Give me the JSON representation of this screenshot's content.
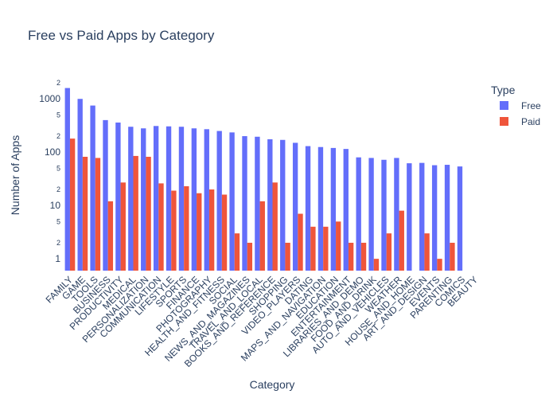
{
  "chart_data": {
    "type": "bar",
    "title": "Free vs Paid Apps by Category",
    "xlabel": "Category",
    "ylabel": "Number of Apps",
    "yscale": "log",
    "ylim": [
      0.6,
      2300
    ],
    "grid": false,
    "legend_title": "Type",
    "legend_position": "top-right",
    "categories": [
      "FAMILY",
      "GAME",
      "TOOLS",
      "BUSINESS",
      "PRODUCTIVITY",
      "MEDICAL",
      "PERSONALIZATION",
      "COMMUNICATION",
      "LIFESTYLE",
      "SPORTS",
      "FINANCE",
      "PHOTOGRAPHY",
      "HEALTH_AND_FITNESS",
      "SOCIAL",
      "NEWS_AND_MAGAZINES",
      "TRAVEL_AND_LOCAL",
      "BOOKS_AND_REFERENCE",
      "SHOPPING",
      "VIDEO_PLAYERS",
      "DATING",
      "MAPS_AND_NAVIGATION",
      "EDUCATION",
      "ENTERTAINMENT",
      "LIBRARIES_AND_DEMO",
      "FOOD_AND_DRINK",
      "AUTO_AND_VEHICLES",
      "WEATHER",
      "HOUSE_AND_HOME",
      "ART_AND_DESIGN",
      "EVENTS",
      "PARENTING",
      "COMICS",
      "BEAUTY"
    ],
    "series": [
      {
        "name": "Free",
        "color": "#636efa",
        "values": [
          1600,
          1000,
          750,
          400,
          360,
          300,
          280,
          310,
          305,
          300,
          280,
          270,
          250,
          235,
          200,
          195,
          175,
          170,
          150,
          130,
          125,
          120,
          115,
          80,
          78,
          72,
          78,
          62,
          63,
          57,
          58,
          54,
          null
        ]
      },
      {
        "name": "Paid",
        "color": "#ef553b",
        "values": [
          180,
          82,
          78,
          12,
          27,
          85,
          82,
          26,
          19,
          23,
          17,
          20,
          16,
          3,
          2,
          12,
          27,
          2,
          7,
          4,
          4,
          5,
          2,
          2,
          1,
          3,
          8,
          null,
          3,
          1,
          2,
          null,
          null
        ]
      }
    ],
    "yticks": {
      "major": [
        "1",
        "10",
        "100",
        "1000"
      ],
      "minor": [
        "2",
        "5",
        "2",
        "5",
        "2",
        "5",
        "2",
        "5",
        "2"
      ]
    }
  }
}
